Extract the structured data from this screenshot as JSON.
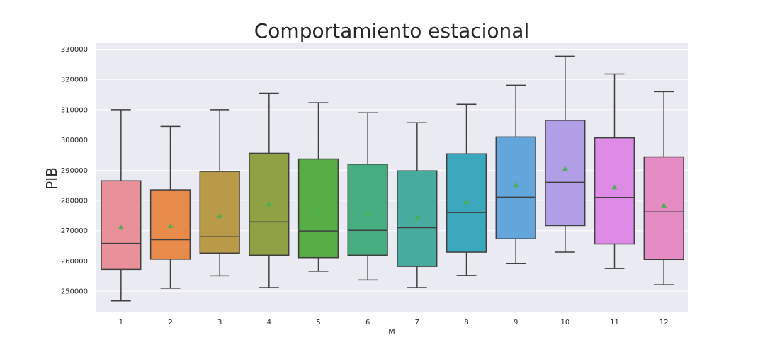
{
  "chart_data": {
    "type": "box",
    "title": "Comportamiento estacional",
    "xlabel": "M",
    "ylabel": "PIB",
    "ylim": [
      243000,
      332000
    ],
    "yticks": [
      250000,
      260000,
      270000,
      280000,
      290000,
      300000,
      310000,
      320000,
      330000
    ],
    "grid": true,
    "legend": "none",
    "categories": [
      "1",
      "2",
      "3",
      "4",
      "5",
      "6",
      "7",
      "8",
      "9",
      "10",
      "11",
      "12"
    ],
    "colors": [
      "#e8919b",
      "#e88b4a",
      "#b99a48",
      "#8fa145",
      "#56ad45",
      "#45ad80",
      "#48aba0",
      "#3ba8be",
      "#63a6dc",
      "#b19ee6",
      "#de8be8",
      "#e68cc4"
    ],
    "boxes": [
      {
        "min": 246800,
        "q1": 257200,
        "median": 265800,
        "q3": 286500,
        "max": 310000,
        "mean": 271200
      },
      {
        "min": 251000,
        "q1": 260600,
        "median": 267000,
        "q3": 283500,
        "max": 304500,
        "mean": 271700
      },
      {
        "min": 255100,
        "q1": 262600,
        "median": 268000,
        "q3": 289600,
        "max": 310000,
        "mean": 275000
      },
      {
        "min": 251200,
        "q1": 261900,
        "median": 272900,
        "q3": 295600,
        "max": 315500,
        "mean": 278900
      },
      {
        "min": 256600,
        "q1": 261100,
        "median": 269900,
        "q3": 293700,
        "max": 312300,
        "mean": 277100
      },
      {
        "min": 253700,
        "q1": 261900,
        "median": 270100,
        "q3": 292000,
        "max": 309000,
        "mean": 275800
      },
      {
        "min": 251200,
        "q1": 258200,
        "median": 271000,
        "q3": 289800,
        "max": 305700,
        "mean": 274300
      },
      {
        "min": 255200,
        "q1": 262900,
        "median": 276000,
        "q3": 295400,
        "max": 311800,
        "mean": 279600
      },
      {
        "min": 259100,
        "q1": 267300,
        "median": 281100,
        "q3": 301000,
        "max": 318100,
        "mean": 285200
      },
      {
        "min": 262900,
        "q1": 271700,
        "median": 286000,
        "q3": 306500,
        "max": 327700,
        "mean": 290600
      },
      {
        "min": 257500,
        "q1": 265600,
        "median": 281000,
        "q3": 300700,
        "max": 321800,
        "mean": 284500
      },
      {
        "min": 252100,
        "q1": 260500,
        "median": 276200,
        "q3": 294400,
        "max": 316000,
        "mean": 278500
      }
    ]
  }
}
